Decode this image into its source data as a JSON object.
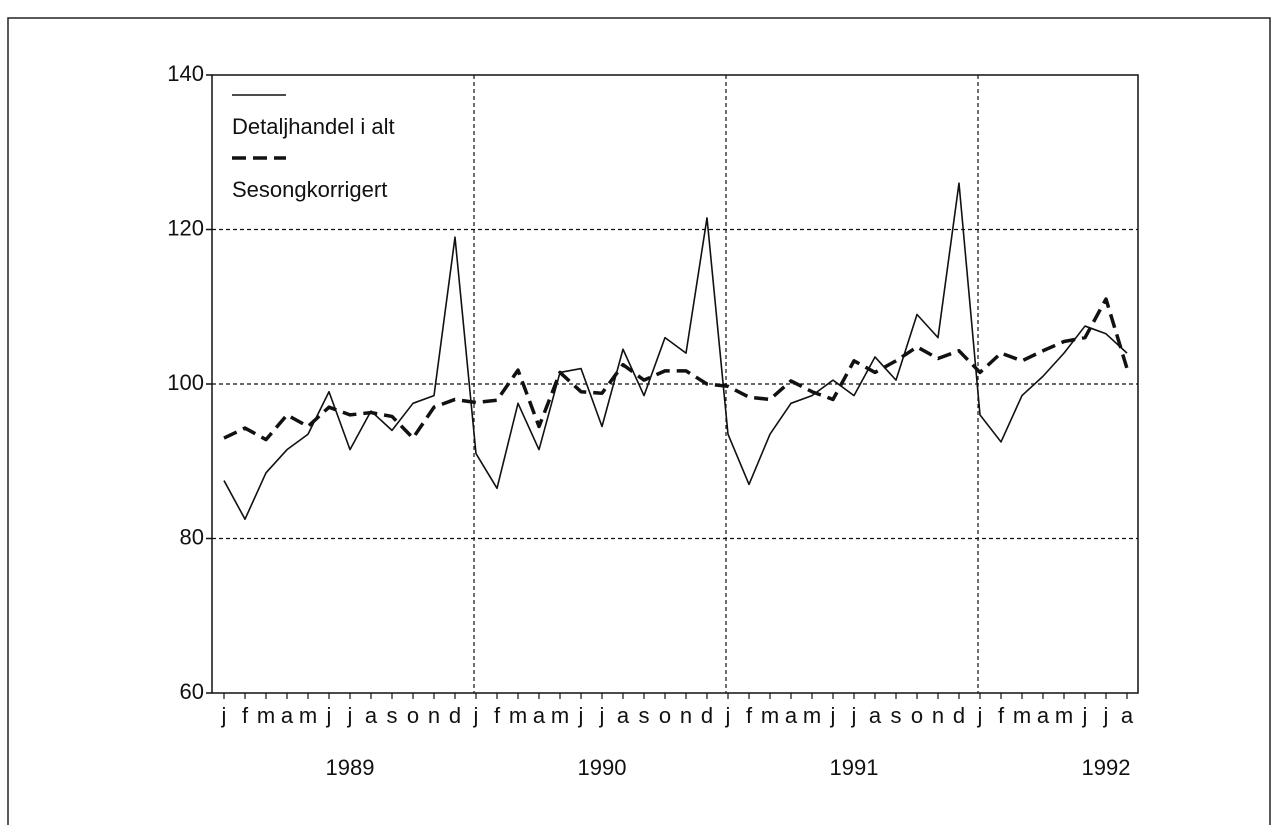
{
  "chart_data": {
    "type": "line",
    "categories": [
      "j",
      "f",
      "m",
      "a",
      "m",
      "j",
      "j",
      "a",
      "s",
      "o",
      "n",
      "d",
      "j",
      "f",
      "m",
      "a",
      "m",
      "j",
      "j",
      "a",
      "s",
      "o",
      "n",
      "d",
      "j",
      "f",
      "m",
      "a",
      "m",
      "j",
      "j",
      "a",
      "s",
      "o",
      "n",
      "d",
      "j",
      "f",
      "m",
      "a",
      "m",
      "j",
      "j",
      "a"
    ],
    "year_labels": [
      "1989",
      "1990",
      "1991",
      "1992"
    ],
    "series": [
      {
        "name": "Detaljhandel i alt",
        "color": "#111111",
        "dash": false,
        "values": [
          87.5,
          82.5,
          88.5,
          91.5,
          93.5,
          99,
          91.5,
          96.5,
          94,
          97.5,
          98.5,
          119,
          91,
          86.5,
          97.5,
          91.5,
          101.5,
          102,
          94.5,
          104.5,
          98.5,
          106,
          104,
          121.5,
          93.5,
          87,
          93.5,
          97.5,
          98.5,
          100.5,
          98.5,
          103.5,
          100.5,
          109,
          106,
          126,
          96,
          92.5,
          98.5,
          101,
          104,
          107.5,
          106.5,
          104
        ]
      },
      {
        "name": "Sesongkorrigert",
        "color": "#111111",
        "dash": true,
        "values": [
          93,
          94.3,
          92.8,
          96,
          94.5,
          97,
          96,
          96.3,
          95.8,
          93,
          97,
          98,
          97.6,
          97.9,
          101.8,
          94.5,
          101.5,
          99,
          98.8,
          102.5,
          100.5,
          101.7,
          101.7,
          100,
          99.7,
          98.3,
          98,
          100.4,
          99,
          98,
          103,
          101.5,
          103,
          104.8,
          103.3,
          104.3,
          101.5,
          104,
          103,
          104.3,
          105.5,
          106,
          111,
          102
        ]
      }
    ],
    "ylim": [
      60,
      140
    ],
    "yticks": [
      60,
      80,
      100,
      120,
      140
    ],
    "grid": true
  }
}
